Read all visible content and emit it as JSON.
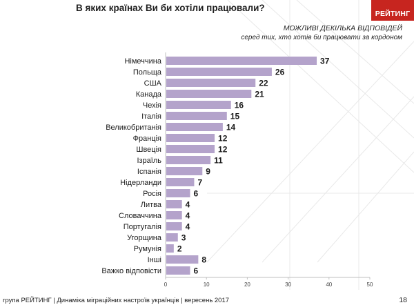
{
  "header": {
    "title": "В яких країнах Ви би хотіли працювали?",
    "logo_text": "РЕЙТИНГ",
    "note_multiple": "МОЖЛИВІ ДЕКІЛЬКА ВІДПОВІДЕЙ",
    "note_base": "серед тих, хто хотів би працювати за кордоном"
  },
  "footer": {
    "text": "група РЕЙТИНГ  | Динаміка міграційних настроїв українців  |  вересень 2017",
    "page_number": "18"
  },
  "colors": {
    "bar": "#b4a3cb",
    "logo_bg": "#c7251f",
    "axis": "#bfbfbf"
  },
  "chart_data": {
    "type": "bar",
    "orientation": "horizontal",
    "categories": [
      "Німеччина",
      "Польща",
      "США",
      "Канада",
      "Чехія",
      "Італія",
      "Великобританія",
      "Франція",
      "Швеція",
      "Ізраїль",
      "Іспанія",
      "Нідерланди",
      "Росія",
      "Литва",
      "Словаччина",
      "Португалія",
      "Угорщина",
      "Румунія",
      "Інші",
      "Важко відповісти"
    ],
    "values": [
      37,
      26,
      22,
      21,
      16,
      15,
      14,
      12,
      12,
      11,
      9,
      7,
      6,
      4,
      4,
      4,
      3,
      2,
      8,
      6
    ],
    "xlim": [
      0,
      50
    ],
    "xticks": [
      0,
      10,
      20,
      30,
      40,
      50
    ],
    "grid": false,
    "legend": "none"
  }
}
